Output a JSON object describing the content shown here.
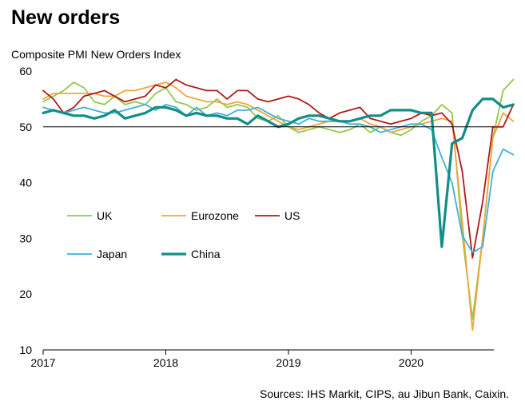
{
  "chart_data": {
    "type": "line",
    "title": "New orders",
    "ylabel": "Composite PMI New Orders Index",
    "xlabel": "",
    "source": "Sources: IHS Markit, CIPS, au Jibun Bank, Caixin.",
    "ylim": [
      10,
      60
    ],
    "yticks": [
      10,
      20,
      30,
      40,
      50,
      60
    ],
    "x_start": "2017-01",
    "x_ticks": [
      "2017",
      "2018",
      "2019",
      "2020"
    ],
    "reference_line": 50,
    "legend_position": "center-left",
    "series": [
      {
        "name": "UK",
        "color": "#92c94b",
        "width": 1.8,
        "values": [
          54.5,
          55.5,
          56.5,
          58.0,
          57.0,
          54.5,
          54.0,
          55.5,
          54.0,
          54.5,
          54.0,
          56.0,
          57.0,
          54.5,
          54.0,
          53.0,
          53.5,
          55.0,
          53.5,
          54.0,
          53.5,
          51.5,
          51.0,
          52.0,
          50.0,
          49.0,
          49.5,
          50.0,
          49.5,
          49.0,
          49.5,
          50.5,
          49.0,
          50.0,
          49.0,
          48.5,
          49.5,
          51.0,
          52.0,
          54.0,
          52.5,
          30.5,
          15.5,
          30.0,
          48.0,
          56.5,
          58.5
        ]
      },
      {
        "name": "Eurozone",
        "color": "#f2a53a",
        "width": 1.8,
        "values": [
          55.0,
          56.0,
          56.0,
          56.0,
          56.0,
          56.0,
          55.5,
          55.5,
          56.5,
          56.5,
          57.0,
          57.5,
          58.0,
          57.0,
          55.5,
          55.0,
          54.5,
          54.5,
          54.0,
          54.5,
          54.0,
          53.0,
          52.0,
          51.0,
          50.0,
          49.5,
          50.0,
          50.5,
          51.0,
          51.0,
          51.0,
          51.5,
          50.5,
          50.0,
          49.0,
          49.5,
          50.0,
          50.5,
          51.0,
          51.5,
          51.0,
          33.0,
          13.5,
          30.0,
          48.0,
          52.5,
          51.0
        ]
      },
      {
        "name": "US",
        "color": "#b01a1a",
        "width": 1.8,
        "values": [
          56.5,
          55.0,
          52.5,
          53.5,
          55.5,
          56.0,
          56.5,
          55.5,
          54.5,
          55.0,
          55.5,
          57.5,
          57.0,
          58.5,
          57.5,
          57.0,
          56.5,
          56.5,
          55.0,
          56.5,
          56.5,
          55.0,
          54.5,
          55.0,
          55.5,
          55.0,
          54.0,
          52.5,
          51.5,
          52.5,
          53.0,
          53.5,
          51.5,
          51.0,
          50.5,
          51.0,
          51.5,
          52.5,
          52.0,
          52.5,
          50.5,
          42.0,
          26.5,
          36.5,
          50.0,
          50.0,
          54.0
        ]
      },
      {
        "name": "Japan",
        "color": "#3fb1d9",
        "width": 1.8,
        "values": [
          53.5,
          53.0,
          52.5,
          53.0,
          53.5,
          53.0,
          52.5,
          52.5,
          53.0,
          53.5,
          54.0,
          53.0,
          54.0,
          53.5,
          52.0,
          53.5,
          52.0,
          52.5,
          52.0,
          53.0,
          53.0,
          53.5,
          52.5,
          51.5,
          51.0,
          50.5,
          51.5,
          51.0,
          51.0,
          51.0,
          50.5,
          50.5,
          50.0,
          49.0,
          49.5,
          50.0,
          50.5,
          50.5,
          49.5,
          44.5,
          40.0,
          30.5,
          27.5,
          28.5,
          42.0,
          46.0,
          45.0
        ]
      },
      {
        "name": "China",
        "color": "#138e86",
        "width": 3.2,
        "values": [
          52.5,
          53.0,
          52.5,
          52.0,
          52.0,
          51.5,
          52.0,
          53.0,
          51.5,
          52.0,
          52.5,
          53.5,
          53.5,
          53.0,
          52.0,
          52.5,
          52.0,
          52.0,
          51.5,
          51.5,
          50.5,
          52.0,
          51.0,
          50.0,
          50.5,
          51.5,
          52.0,
          52.0,
          51.5,
          51.0,
          51.0,
          51.5,
          52.0,
          52.0,
          53.0,
          53.0,
          53.0,
          52.5,
          52.5,
          28.5,
          47.0,
          48.0,
          53.0,
          55.0,
          55.0,
          53.5,
          54.0
        ]
      }
    ]
  }
}
